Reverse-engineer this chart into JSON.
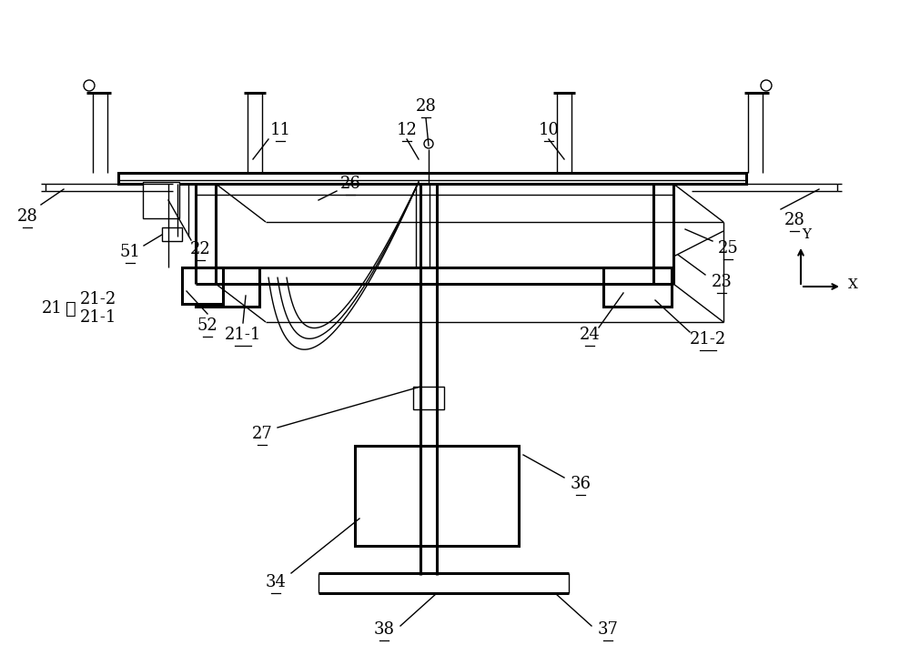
{
  "bg_color": "#ffffff",
  "line_color": "#000000",
  "lw": 1.5,
  "lw_thick": 2.2,
  "lw_thin": 1.0,
  "fs": 13,
  "fs_small": 11,
  "fig_w": 10.0,
  "fig_h": 7.2,
  "dpi": 100
}
